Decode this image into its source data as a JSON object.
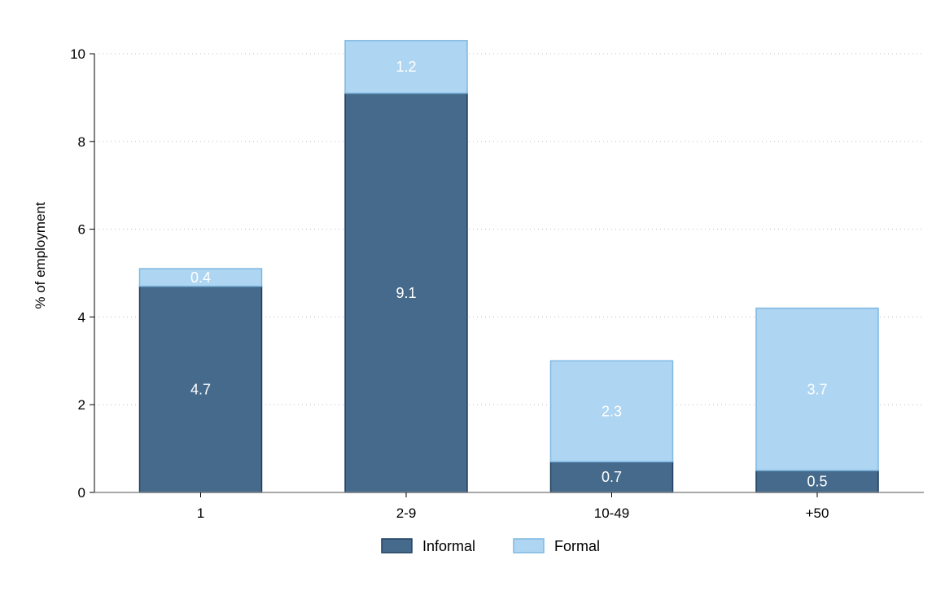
{
  "chart_data": {
    "type": "bar",
    "stacked": true,
    "categories": [
      "1",
      "2-9",
      "10-49",
      "+50"
    ],
    "series": [
      {
        "name": "Informal",
        "values": [
          4.7,
          9.1,
          0.7,
          0.5
        ],
        "labels": [
          "4.7",
          "9.1",
          "0.7",
          "0.5"
        ],
        "color": "#466a8c",
        "stroke": "#1f3f5e"
      },
      {
        "name": "Formal",
        "values": [
          0.4,
          1.2,
          2.3,
          3.7
        ],
        "labels": [
          "0.4",
          "1.2",
          "2.3",
          "3.7"
        ],
        "color": "#aed5f1",
        "stroke": "#7fb8e2"
      }
    ],
    "ylabel": "% of employment",
    "xlabel": "",
    "ylim": [
      0,
      10
    ],
    "yticks": [
      0,
      2,
      4,
      6,
      8,
      10
    ],
    "ytick_labels": [
      "0",
      "2",
      "4",
      "6",
      "8",
      "10"
    ],
    "grid": true,
    "legend_position": "bottom-center"
  }
}
